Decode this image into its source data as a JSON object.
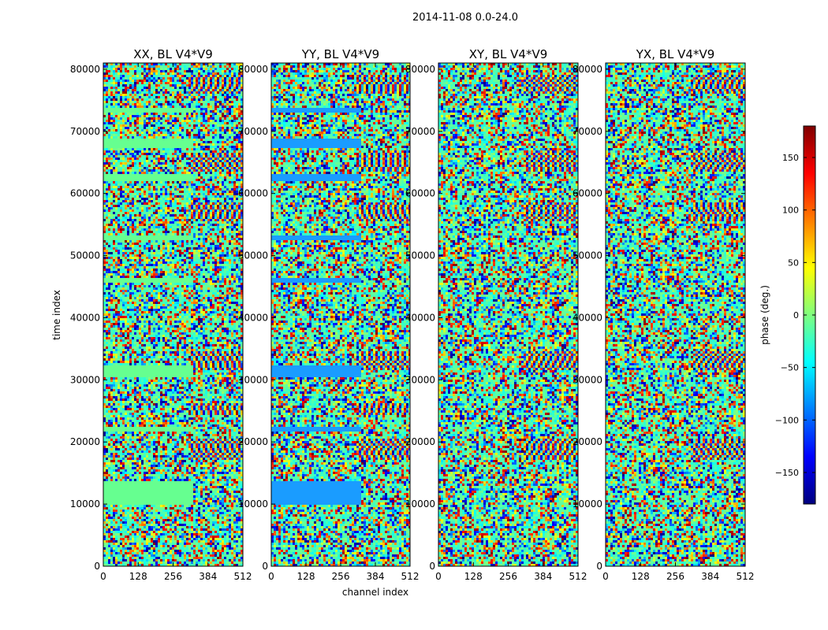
{
  "figure_title": "2014-11-08 0.0-24.0",
  "chart_data": [
    {
      "type": "heatmap",
      "title": "XX, BL V4*V9",
      "xlabel": "",
      "ylabel": "time index",
      "xlim": [
        0,
        512
      ],
      "ylim": [
        0,
        81000
      ],
      "xticks": [
        0,
        128,
        256,
        384,
        512
      ],
      "yticks": [
        0,
        10000,
        20000,
        30000,
        40000,
        50000,
        60000,
        70000,
        80000
      ],
      "flagged_bands": [
        [
          10000,
          13500
        ],
        [
          21800,
          22500
        ],
        [
          30500,
          32400
        ],
        [
          45500,
          46500
        ],
        [
          52500,
          53300
        ],
        [
          61800,
          63000
        ],
        [
          67500,
          69000
        ],
        [
          73000,
          73800
        ]
      ],
      "fringe_bands": [
        [
          17000,
          20500
        ],
        [
          24500,
          26200
        ],
        [
          31500,
          34500
        ],
        [
          55500,
          58500
        ],
        [
          63500,
          66500
        ],
        [
          76000,
          79000
        ]
      ]
    },
    {
      "type": "heatmap",
      "title": "YY, BL V4*V9",
      "xlabel": "channel index",
      "ylabel": "",
      "xlim": [
        0,
        512
      ],
      "ylim": [
        0,
        81000
      ],
      "xticks": [
        0,
        128,
        256,
        384,
        512
      ],
      "yticks": [
        0,
        10000,
        20000,
        30000,
        40000,
        50000,
        60000,
        70000,
        80000
      ],
      "flagged_bands": [
        [
          10000,
          13500
        ],
        [
          21800,
          22500
        ],
        [
          30500,
          32400
        ],
        [
          45500,
          46500
        ],
        [
          52500,
          53300
        ],
        [
          61800,
          63000
        ],
        [
          67500,
          69000
        ],
        [
          73000,
          73800
        ]
      ],
      "fringe_bands": [
        [
          17000,
          20500
        ],
        [
          24500,
          26200
        ],
        [
          31500,
          34500
        ],
        [
          55500,
          58500
        ],
        [
          63500,
          66500
        ],
        [
          76000,
          79000
        ]
      ]
    },
    {
      "type": "heatmap",
      "title": "XY, BL V4*V9",
      "xlabel": "",
      "ylabel": "",
      "xlim": [
        0,
        512
      ],
      "ylim": [
        0,
        81000
      ],
      "xticks": [
        0,
        128,
        256,
        384,
        512
      ],
      "yticks": [
        0,
        10000,
        20000,
        30000,
        40000,
        50000,
        60000,
        70000,
        80000
      ],
      "flagged_bands": [],
      "fringe_bands": [
        [
          17000,
          20500
        ],
        [
          31500,
          34500
        ],
        [
          55500,
          58500
        ],
        [
          63500,
          66500
        ],
        [
          76000,
          79000
        ]
      ]
    },
    {
      "type": "heatmap",
      "title": "YX, BL V4*V9",
      "xlabel": "",
      "ylabel": "",
      "xlim": [
        0,
        512
      ],
      "ylim": [
        0,
        81000
      ],
      "xticks": [
        0,
        128,
        256,
        384,
        512
      ],
      "yticks": [
        0,
        10000,
        20000,
        30000,
        40000,
        50000,
        60000,
        70000,
        80000
      ],
      "flagged_bands": [],
      "fringe_bands": [
        [
          17000,
          20500
        ],
        [
          31500,
          34500
        ],
        [
          55500,
          58500
        ],
        [
          63500,
          66500
        ],
        [
          76000,
          79000
        ]
      ]
    }
  ],
  "colorbar": {
    "label": "phase (deg.)",
    "range": [
      -180,
      180
    ],
    "ticks": [
      -150,
      -100,
      -50,
      0,
      50,
      100,
      150
    ],
    "tick_labels": [
      "−150",
      "−100",
      "−50",
      "0",
      "50",
      "100",
      "150"
    ],
    "colormap": "jet",
    "colors": [
      "#00007f",
      "#0000ff",
      "#007fff",
      "#00ffff",
      "#7fff7f",
      "#ffff00",
      "#ff7f00",
      "#ff0000",
      "#7f0000"
    ]
  },
  "flag_colors": {
    "xx": "#66ff90",
    "yy": "#1a9cff"
  }
}
